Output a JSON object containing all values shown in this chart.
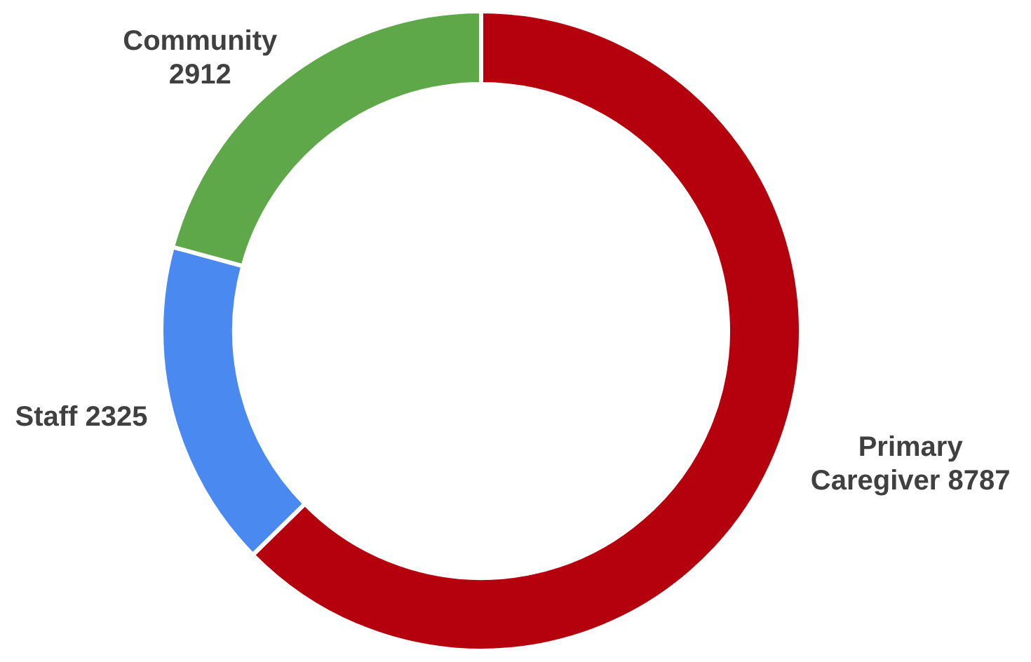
{
  "chart_data": {
    "type": "donut",
    "categories": [
      "Primary Caregiver",
      "Staff",
      "Community"
    ],
    "values": [
      8787,
      2325,
      2912
    ],
    "colors": [
      "#b5000d",
      "#4a8af0",
      "#5fa84a"
    ],
    "data_labels": true
  }
}
